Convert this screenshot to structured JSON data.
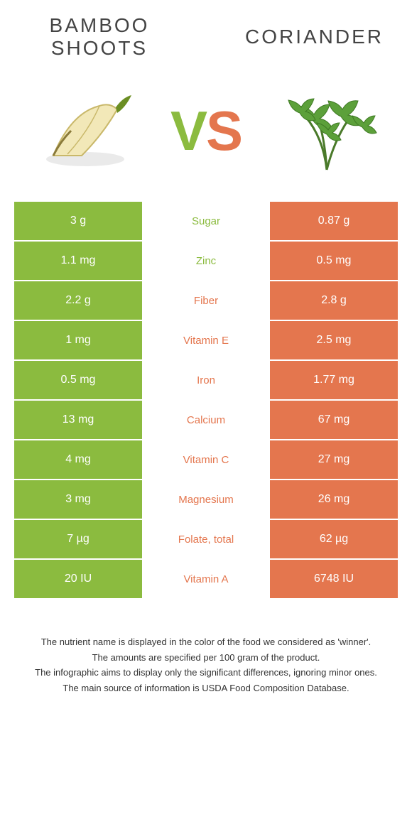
{
  "header": {
    "left_title": "BAMBOO SHOOTS",
    "right_title": "CORIANDER"
  },
  "vs": {
    "v": "V",
    "s": "S"
  },
  "colors": {
    "green": "#8bbb3f",
    "orange": "#e4764e",
    "text": "#333333",
    "bg": "#ffffff"
  },
  "table": {
    "rows": [
      {
        "left": "3 g",
        "label": "Sugar",
        "right": "0.87 g",
        "winner": "green"
      },
      {
        "left": "1.1 mg",
        "label": "Zinc",
        "right": "0.5 mg",
        "winner": "green"
      },
      {
        "left": "2.2 g",
        "label": "Fiber",
        "right": "2.8 g",
        "winner": "orange"
      },
      {
        "left": "1 mg",
        "label": "Vitamin E",
        "right": "2.5 mg",
        "winner": "orange"
      },
      {
        "left": "0.5 mg",
        "label": "Iron",
        "right": "1.77 mg",
        "winner": "orange"
      },
      {
        "left": "13 mg",
        "label": "Calcium",
        "right": "67 mg",
        "winner": "orange"
      },
      {
        "left": "4 mg",
        "label": "Vitamin C",
        "right": "27 mg",
        "winner": "orange"
      },
      {
        "left": "3 mg",
        "label": "Magnesium",
        "right": "26 mg",
        "winner": "orange"
      },
      {
        "left": "7 µg",
        "label": "Folate, total",
        "right": "62 µg",
        "winner": "orange"
      },
      {
        "left": "20 IU",
        "label": "Vitamin A",
        "right": "6748 IU",
        "winner": "orange"
      }
    ]
  },
  "footnotes": [
    "The nutrient name is displayed in the color of the food we considered as 'winner'.",
    "The amounts are specified per 100 gram of the product.",
    "The infographic aims to display only the significant differences, ignoring minor ones.",
    "The main source of information is USDA Food Composition Database."
  ]
}
